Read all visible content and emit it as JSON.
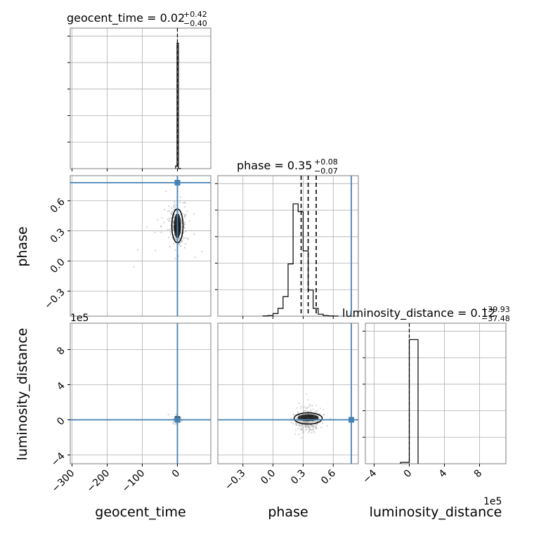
{
  "chart_data": {
    "type": "corner",
    "parameters": [
      {
        "name": "geocent_time",
        "label": "geocent_time",
        "median": "0.02",
        "upper": "+0.42",
        "lower": "−0.40",
        "ticks": [
          -300,
          -200,
          -100,
          0
        ],
        "tick_labels": [
          "−300",
          "−200",
          "−100",
          "0"
        ],
        "range": [
          -305,
          95
        ],
        "truth": 0
      },
      {
        "name": "phase",
        "label": "phase",
        "median": "0.35",
        "upper": "+0.08",
        "lower": "−0.07",
        "ticks": [
          -0.3,
          0.0,
          0.3,
          0.6
        ],
        "tick_labels": [
          "−0.3",
          "0.0",
          "0.3",
          "0.6"
        ],
        "range": [
          -0.55,
          0.85
        ],
        "truth": 0.78,
        "quantiles": [
          0.28,
          0.35,
          0.43
        ]
      },
      {
        "name": "luminosity_distance",
        "label": "luminosity_distance",
        "median": "0.12",
        "upper": "+39.93",
        "lower": "−37.48",
        "ticks": [
          -4,
          0,
          4,
          8
        ],
        "tick_labels": [
          "−4",
          "0",
          "4",
          "8"
        ],
        "range": [
          -5,
          11
        ],
        "truth": 0,
        "offset": "1e5"
      }
    ],
    "hist_geocent_time": {
      "bins": [
        -5,
        -1,
        3,
        7,
        11
      ],
      "counts": [
        0.02,
        0.96,
        0.0,
        0.0
      ]
    },
    "hist_phase": {
      "edges": [
        -0.1,
        -0.05,
        0.0,
        0.05,
        0.1,
        0.15,
        0.2,
        0.25,
        0.3,
        0.35,
        0.4,
        0.45,
        0.5,
        0.55,
        0.6,
        0.65
      ],
      "counts": [
        0.002,
        0.005,
        0.02,
        0.06,
        0.15,
        0.4,
        0.86,
        0.8,
        0.5,
        0.2,
        0.06,
        0.015,
        0.005,
        0.002,
        0.001
      ]
    },
    "hist_luminosity_distance": {
      "bins": [
        -1,
        0,
        1
      ],
      "counts": [
        0.01,
        0.95
      ]
    },
    "scatter_geocent_phase": {
      "center_x": 0,
      "center_y": 0.35
    },
    "scatter_phase_distance": {
      "center_x": 0.35,
      "center_y": 0.0
    },
    "colors": {
      "truth": "#4682b4",
      "hist": "#000000",
      "grid": "#b0b0b0",
      "scatter": "#9a9a9a"
    },
    "grid": true
  }
}
